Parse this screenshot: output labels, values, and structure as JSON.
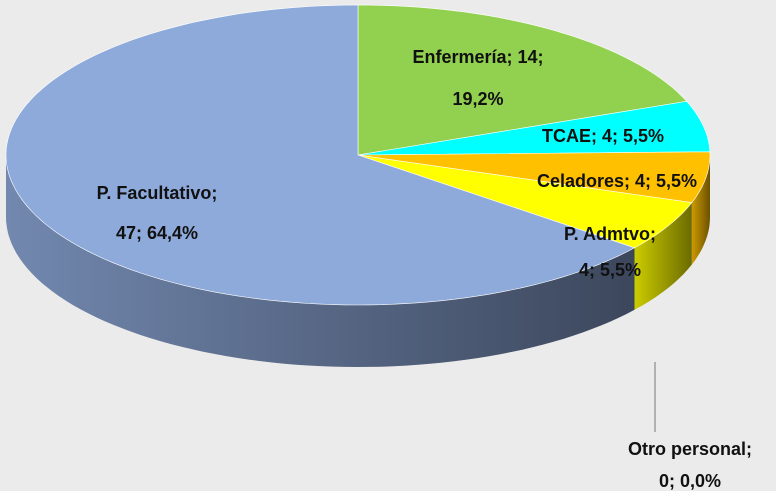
{
  "chart_data": {
    "type": "pie",
    "values": [
      14,
      4,
      4,
      4,
      0,
      47
    ],
    "value_labels": [
      [
        "Enfermería; 14;",
        "19,2%"
      ],
      [
        "TCAE; 4; 5,5%"
      ],
      [
        "Celadores; 4; 5,5%"
      ],
      [
        "P. Admtvo;",
        "4; 5,5%"
      ],
      [
        "Otro personal;",
        "0; 0,0%"
      ],
      [
        "P. Facultativo;",
        "47; 64,4%"
      ]
    ],
    "colors": [
      "#92d050",
      "#00ffff",
      "#ffc000",
      "#ffff00",
      "#7f7f7f",
      "#8eaadb"
    ],
    "style": "3d"
  }
}
